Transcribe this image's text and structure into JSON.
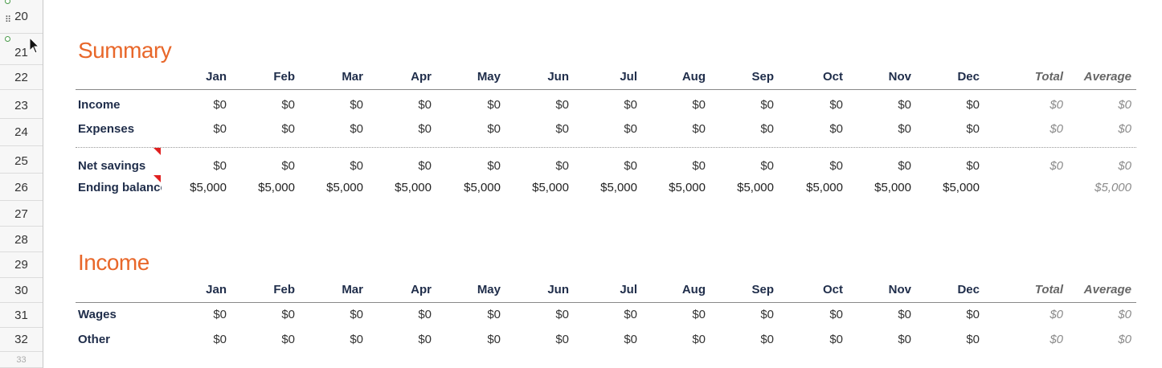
{
  "row_numbers": [
    "20",
    "21",
    "22",
    "23",
    "24",
    "25",
    "26",
    "27",
    "28",
    "29",
    "30",
    "31",
    "32",
    "33"
  ],
  "months": [
    "Jan",
    "Feb",
    "Mar",
    "Apr",
    "May",
    "Jun",
    "Jul",
    "Aug",
    "Sep",
    "Oct",
    "Nov",
    "Dec"
  ],
  "total_label": "Total",
  "average_label": "Average",
  "summary": {
    "title": "Summary",
    "rows": [
      {
        "label": "Income",
        "months": [
          "$0",
          "$0",
          "$0",
          "$0",
          "$0",
          "$0",
          "$0",
          "$0",
          "$0",
          "$0",
          "$0",
          "$0"
        ],
        "total": "$0",
        "average": "$0"
      },
      {
        "label": "Expenses",
        "months": [
          "$0",
          "$0",
          "$0",
          "$0",
          "$0",
          "$0",
          "$0",
          "$0",
          "$0",
          "$0",
          "$0",
          "$0"
        ],
        "total": "$0",
        "average": "$0"
      },
      {
        "label": "Net savings",
        "months": [
          "$0",
          "$0",
          "$0",
          "$0",
          "$0",
          "$0",
          "$0",
          "$0",
          "$0",
          "$0",
          "$0",
          "$0"
        ],
        "total": "$0",
        "average": "$0"
      },
      {
        "label": "Ending balance",
        "months": [
          "$5,000",
          "$5,000",
          "$5,000",
          "$5,000",
          "$5,000",
          "$5,000",
          "$5,000",
          "$5,000",
          "$5,000",
          "$5,000",
          "$5,000",
          "$5,000"
        ],
        "total": "",
        "average": "$5,000"
      }
    ]
  },
  "income": {
    "title": "Income",
    "rows": [
      {
        "label": "Wages",
        "months": [
          "$0",
          "$0",
          "$0",
          "$0",
          "$0",
          "$0",
          "$0",
          "$0",
          "$0",
          "$0",
          "$0",
          "$0"
        ],
        "total": "$0",
        "average": "$0"
      },
      {
        "label": "Other",
        "months": [
          "$0",
          "$0",
          "$0",
          "$0",
          "$0",
          "$0",
          "$0",
          "$0",
          "$0",
          "$0",
          "$0",
          "$0"
        ],
        "total": "$0",
        "average": "$0"
      }
    ]
  },
  "icons": {
    "drag_handle": "grip-dots-icon",
    "cursor": "mouse-pointer-icon",
    "comment": "comment-indicator-icon"
  },
  "colors": {
    "heading": "#e8672a",
    "comment_flag": "#e02020"
  }
}
